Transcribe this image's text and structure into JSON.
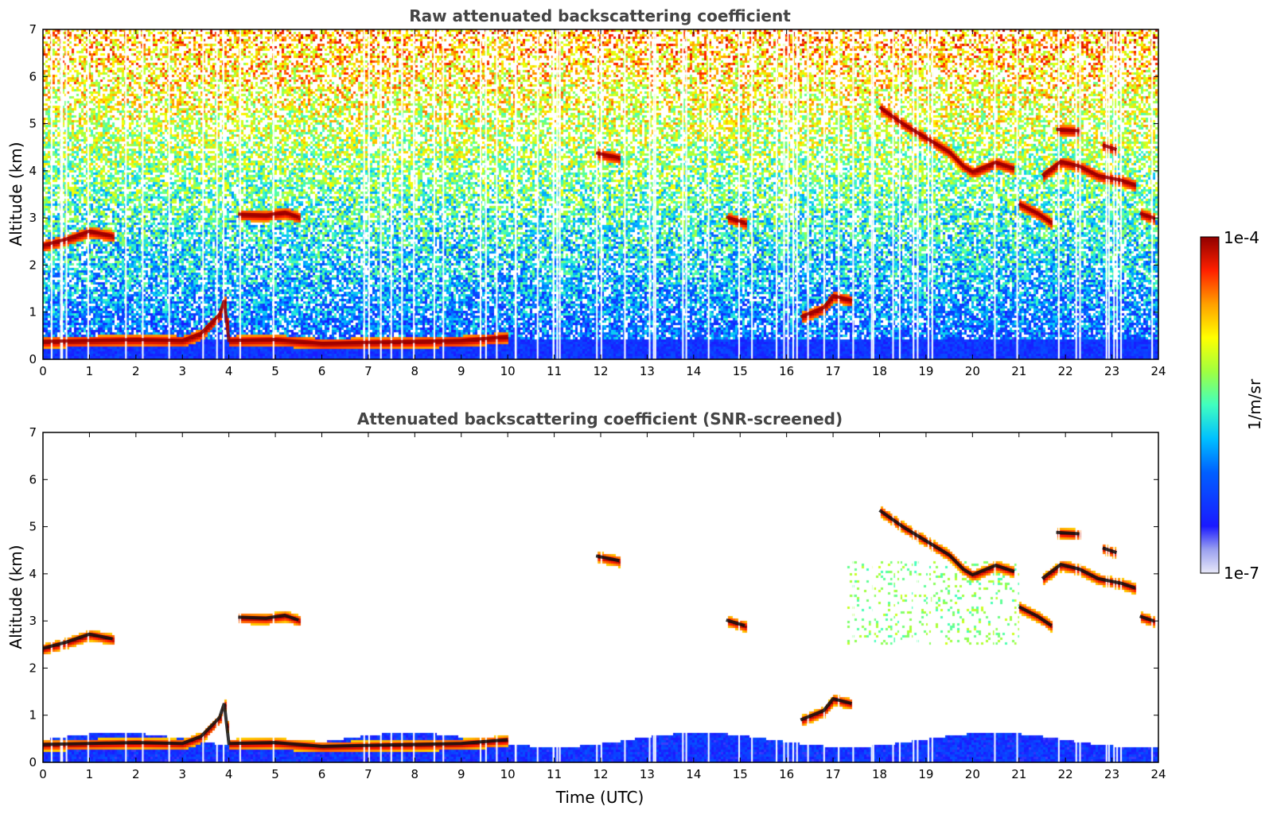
{
  "chart_data": [
    {
      "type": "heatmap",
      "title": "Raw attenuated backscattering coefficient",
      "xlabel": "",
      "ylabel": "Altitude (km)",
      "xlim": [
        0,
        24
      ],
      "ylim": [
        0,
        7
      ],
      "xticks": [
        0,
        1,
        2,
        3,
        4,
        5,
        6,
        7,
        8,
        9,
        10,
        11,
        12,
        13,
        14,
        15,
        16,
        17,
        18,
        19,
        20,
        21,
        22,
        23,
        24
      ],
      "yticks": [
        0,
        1,
        2,
        3,
        4,
        5,
        6,
        7
      ],
      "screened": false,
      "colorbar": {
        "label": "1/m/sr",
        "min_label": "1e-7",
        "max_label": "1e-4",
        "scale": "log"
      },
      "features": [
        {
          "name": "boundary layer top",
          "points": [
            [
              0,
              0.38
            ],
            [
              1,
              0.4
            ],
            [
              2,
              0.42
            ],
            [
              3,
              0.4
            ],
            [
              3.4,
              0.55
            ],
            [
              3.8,
              0.95
            ],
            [
              3.9,
              1.25
            ],
            [
              4.0,
              0.4
            ],
            [
              5,
              0.42
            ],
            [
              6,
              0.34
            ],
            [
              7,
              0.36
            ],
            [
              8,
              0.38
            ],
            [
              9,
              0.4
            ],
            [
              10,
              0.48
            ]
          ]
        },
        {
          "name": "residual layer",
          "points": [
            [
              0,
              2.42
            ],
            [
              0.5,
              2.55
            ],
            [
              1,
              2.72
            ],
            [
              1.5,
              2.62
            ]
          ]
        },
        {
          "name": "cloud 4-5h",
          "points": [
            [
              4.2,
              3.08
            ],
            [
              4.8,
              3.06
            ],
            [
              5.2,
              3.12
            ],
            [
              5.5,
              3.02
            ]
          ]
        },
        {
          "name": "cloud 12h",
          "points": [
            [
              11.9,
              4.38
            ],
            [
              12.4,
              4.28
            ]
          ]
        },
        {
          "name": "cloud 15h",
          "points": [
            [
              14.7,
              3.02
            ],
            [
              15.1,
              2.9
            ]
          ]
        },
        {
          "name": "low cloud 16-17h",
          "points": [
            [
              16.3,
              0.9
            ],
            [
              16.8,
              1.1
            ],
            [
              17.0,
              1.35
            ],
            [
              17.4,
              1.25
            ]
          ]
        },
        {
          "name": "descending cloud layer",
          "points": [
            [
              18.0,
              5.35
            ],
            [
              18.5,
              5.0
            ],
            [
              19.0,
              4.7
            ],
            [
              19.5,
              4.4
            ],
            [
              19.8,
              4.1
            ],
            [
              20.0,
              3.98
            ],
            [
              20.5,
              4.18
            ],
            [
              20.9,
              4.05
            ]
          ]
        },
        {
          "name": "cloud 21h",
          "points": [
            [
              21.0,
              3.3
            ],
            [
              21.4,
              3.1
            ],
            [
              21.7,
              2.9
            ]
          ]
        },
        {
          "name": "cloud 22h",
          "points": [
            [
              21.5,
              3.9
            ],
            [
              21.9,
              4.2
            ],
            [
              22.3,
              4.1
            ],
            [
              22.7,
              3.9
            ],
            [
              23.2,
              3.8
            ],
            [
              23.5,
              3.7
            ]
          ]
        },
        {
          "name": "cloud 22.5h",
          "points": [
            [
              21.8,
              4.88
            ],
            [
              22.3,
              4.85
            ]
          ]
        },
        {
          "name": "cloud 23h",
          "points": [
            [
              22.8,
              4.55
            ],
            [
              23.1,
              4.45
            ]
          ]
        },
        {
          "name": "cloud 23.7h",
          "points": [
            [
              23.6,
              3.1
            ],
            [
              23.9,
              3.0
            ]
          ]
        }
      ]
    },
    {
      "type": "heatmap",
      "title": "Attenuated backscattering coefficient (SNR-screened)",
      "xlabel": "Time (UTC)",
      "ylabel": "Altitude (km)",
      "xlim": [
        0,
        24
      ],
      "ylim": [
        0,
        7
      ],
      "xticks": [
        0,
        1,
        2,
        3,
        4,
        5,
        6,
        7,
        8,
        9,
        10,
        11,
        12,
        13,
        14,
        15,
        16,
        17,
        18,
        19,
        20,
        21,
        22,
        23,
        24
      ],
      "yticks": [
        0,
        1,
        2,
        3,
        4,
        5,
        6,
        7
      ],
      "screened": true
    }
  ]
}
